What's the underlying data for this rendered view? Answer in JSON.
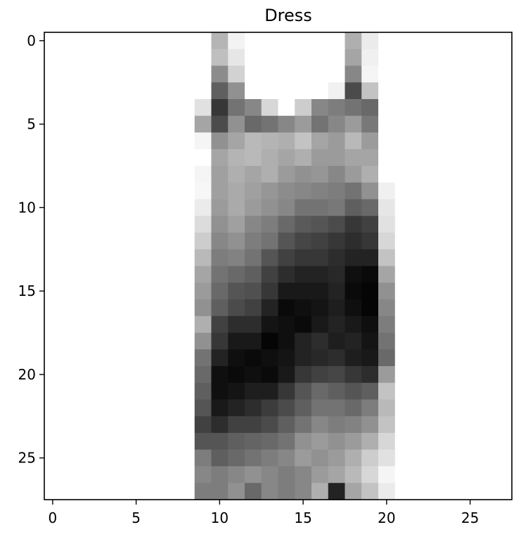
{
  "chart_data": {
    "type": "heatmap",
    "title": "Dress",
    "xlabel": "",
    "ylabel": "",
    "colormap": "gray_r",
    "xlim": [
      -0.5,
      27.5
    ],
    "ylim": [
      27.5,
      -0.5
    ],
    "x_ticks": [
      0,
      5,
      10,
      15,
      20,
      25
    ],
    "y_ticks": [
      0,
      5,
      10,
      15,
      20,
      25
    ],
    "x_tick_labels": [
      "0",
      "5",
      "10",
      "15",
      "20",
      "25"
    ],
    "y_tick_labels": [
      "0",
      "5",
      "10",
      "15",
      "20",
      "25"
    ],
    "grid": false,
    "values": [
      [
        0,
        0,
        0,
        0,
        0,
        0,
        0,
        0,
        0,
        0,
        74,
        12,
        0,
        0,
        0,
        0,
        0,
        0,
        80,
        20,
        0,
        0,
        0,
        0,
        0,
        0,
        0,
        0
      ],
      [
        0,
        0,
        0,
        0,
        0,
        0,
        0,
        0,
        0,
        0,
        64,
        25,
        0,
        0,
        0,
        0,
        0,
        0,
        90,
        15,
        0,
        0,
        0,
        0,
        0,
        0,
        0,
        0
      ],
      [
        0,
        0,
        0,
        0,
        0,
        0,
        0,
        0,
        0,
        0,
        115,
        45,
        0,
        0,
        0,
        0,
        0,
        0,
        120,
        10,
        0,
        0,
        0,
        0,
        0,
        0,
        0,
        0
      ],
      [
        0,
        0,
        0,
        0,
        0,
        0,
        0,
        0,
        0,
        0,
        160,
        110,
        0,
        0,
        0,
        0,
        0,
        15,
        180,
        60,
        0,
        0,
        0,
        0,
        0,
        0,
        0,
        0
      ],
      [
        0,
        0,
        0,
        0,
        0,
        0,
        0,
        0,
        0,
        30,
        200,
        140,
        120,
        40,
        0,
        50,
        120,
        130,
        140,
        150,
        0,
        0,
        0,
        0,
        0,
        0,
        0,
        0
      ],
      [
        0,
        0,
        0,
        0,
        0,
        0,
        0,
        0,
        0,
        90,
        180,
        110,
        150,
        140,
        120,
        100,
        140,
        120,
        100,
        135,
        0,
        0,
        0,
        0,
        0,
        0,
        0,
        0
      ],
      [
        0,
        0,
        0,
        0,
        0,
        0,
        0,
        0,
        0,
        10,
        110,
        90,
        70,
        75,
        80,
        60,
        90,
        100,
        70,
        100,
        0,
        0,
        0,
        0,
        0,
        0,
        0,
        0
      ],
      [
        0,
        0,
        0,
        0,
        0,
        0,
        0,
        0,
        0,
        0,
        90,
        75,
        70,
        80,
        90,
        80,
        100,
        100,
        90,
        90,
        0,
        0,
        0,
        0,
        0,
        0,
        0,
        0
      ],
      [
        0,
        0,
        0,
        0,
        0,
        0,
        0,
        0,
        0,
        10,
        95,
        80,
        90,
        80,
        100,
        110,
        105,
        120,
        100,
        80,
        0,
        0,
        0,
        0,
        0,
        0,
        0,
        0
      ],
      [
        0,
        0,
        0,
        0,
        0,
        0,
        0,
        0,
        0,
        8,
        95,
        85,
        95,
        105,
        115,
        120,
        125,
        130,
        140,
        110,
        15,
        0,
        0,
        0,
        0,
        0,
        0,
        0
      ],
      [
        0,
        0,
        0,
        0,
        0,
        0,
        0,
        0,
        0,
        20,
        100,
        85,
        100,
        110,
        120,
        140,
        140,
        135,
        160,
        150,
        25,
        0,
        0,
        0,
        0,
        0,
        0,
        0
      ],
      [
        0,
        0,
        0,
        0,
        0,
        0,
        0,
        0,
        0,
        35,
        110,
        95,
        120,
        130,
        150,
        165,
        170,
        180,
        200,
        190,
        30,
        0,
        0,
        0,
        0,
        0,
        0,
        0
      ],
      [
        0,
        0,
        0,
        0,
        0,
        0,
        0,
        0,
        0,
        50,
        120,
        110,
        130,
        140,
        170,
        185,
        190,
        200,
        210,
        200,
        40,
        0,
        0,
        0,
        0,
        0,
        0,
        0
      ],
      [
        0,
        0,
        0,
        0,
        0,
        0,
        0,
        0,
        0,
        70,
        130,
        125,
        140,
        170,
        190,
        200,
        200,
        210,
        220,
        220,
        60,
        0,
        0,
        0,
        0,
        0,
        0,
        0
      ],
      [
        0,
        0,
        0,
        0,
        0,
        0,
        0,
        0,
        0,
        90,
        140,
        150,
        160,
        190,
        210,
        220,
        220,
        215,
        240,
        245,
        90,
        0,
        0,
        0,
        0,
        0,
        0,
        0
      ],
      [
        0,
        0,
        0,
        0,
        0,
        0,
        0,
        0,
        0,
        100,
        150,
        170,
        175,
        200,
        230,
        230,
        230,
        220,
        245,
        250,
        110,
        0,
        0,
        0,
        0,
        0,
        0,
        0
      ],
      [
        0,
        0,
        0,
        0,
        0,
        0,
        0,
        0,
        0,
        110,
        160,
        180,
        190,
        220,
        245,
        240,
        235,
        225,
        240,
        250,
        120,
        0,
        0,
        0,
        0,
        0,
        0,
        0
      ],
      [
        0,
        0,
        0,
        0,
        0,
        0,
        0,
        0,
        0,
        80,
        190,
        210,
        210,
        235,
        240,
        245,
        230,
        220,
        230,
        240,
        130,
        0,
        0,
        0,
        0,
        0,
        0,
        0
      ],
      [
        0,
        0,
        0,
        0,
        0,
        0,
        0,
        0,
        0,
        110,
        200,
        230,
        230,
        250,
        240,
        220,
        210,
        225,
        220,
        235,
        140,
        0,
        0,
        0,
        0,
        0,
        0,
        0
      ],
      [
        0,
        0,
        0,
        0,
        0,
        0,
        0,
        0,
        0,
        140,
        220,
        240,
        245,
        240,
        235,
        220,
        215,
        210,
        225,
        230,
        150,
        0,
        0,
        0,
        0,
        0,
        0,
        0
      ],
      [
        0,
        0,
        0,
        0,
        0,
        0,
        0,
        0,
        0,
        150,
        240,
        245,
        240,
        245,
        230,
        200,
        190,
        185,
        200,
        210,
        100,
        0,
        0,
        0,
        0,
        0,
        0,
        0
      ],
      [
        0,
        0,
        0,
        0,
        0,
        0,
        0,
        0,
        0,
        160,
        240,
        235,
        225,
        225,
        200,
        170,
        150,
        160,
        170,
        160,
        60,
        0,
        0,
        0,
        0,
        0,
        0,
        0
      ],
      [
        0,
        0,
        0,
        0,
        0,
        0,
        0,
        0,
        0,
        170,
        230,
        220,
        210,
        195,
        180,
        160,
        140,
        140,
        150,
        130,
        70,
        0,
        0,
        0,
        0,
        0,
        0,
        0
      ],
      [
        0,
        0,
        0,
        0,
        0,
        0,
        0,
        0,
        0,
        190,
        210,
        190,
        190,
        180,
        160,
        140,
        120,
        130,
        125,
        110,
        60,
        0,
        0,
        0,
        0,
        0,
        0,
        0
      ],
      [
        0,
        0,
        0,
        0,
        0,
        0,
        0,
        0,
        0,
        170,
        170,
        160,
        155,
        150,
        140,
        110,
        100,
        110,
        100,
        80,
        40,
        0,
        0,
        0,
        0,
        0,
        0,
        0
      ],
      [
        0,
        0,
        0,
        0,
        0,
        0,
        0,
        0,
        0,
        130,
        160,
        150,
        140,
        130,
        120,
        100,
        110,
        100,
        80,
        50,
        30,
        0,
        0,
        0,
        0,
        0,
        0,
        0
      ],
      [
        0,
        0,
        0,
        0,
        0,
        0,
        0,
        0,
        0,
        120,
        130,
        120,
        110,
        120,
        130,
        120,
        100,
        90,
        70,
        40,
        10,
        0,
        0,
        0,
        0,
        0,
        0,
        0
      ],
      [
        0,
        0,
        0,
        0,
        0,
        0,
        0,
        0,
        0,
        130,
        130,
        110,
        150,
        120,
        130,
        120,
        80,
        220,
        90,
        60,
        20,
        0,
        0,
        0,
        0,
        0,
        0,
        0
      ]
    ]
  }
}
